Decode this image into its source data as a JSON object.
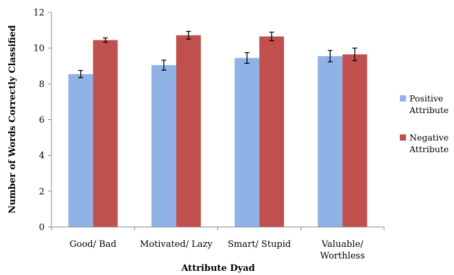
{
  "chart_data": {
    "type": "bar",
    "xlabel": "Attribute Dyad",
    "ylabel": "Number of Words Correctly Classified",
    "ylim": [
      0,
      12
    ],
    "yticks": [
      0,
      2,
      4,
      6,
      8,
      10,
      12
    ],
    "grid": false,
    "legend_position": "right",
    "error_bars": true,
    "categories": [
      [
        "Good/ Bad"
      ],
      [
        "Motivated/ Lazy"
      ],
      [
        "Smart/ Stupid"
      ],
      [
        "Valuable/",
        "Worthless"
      ]
    ],
    "series": [
      {
        "name": [
          "Positive",
          "Attribute"
        ],
        "color": "#8FB3E6",
        "values": [
          8.55,
          9.05,
          9.45,
          9.55
        ],
        "errors": [
          0.2,
          0.28,
          0.3,
          0.32
        ]
      },
      {
        "name": [
          "Negative",
          "Attribute"
        ],
        "color": "#C0504D",
        "values": [
          10.45,
          10.72,
          10.65,
          9.65
        ],
        "errors": [
          0.12,
          0.22,
          0.24,
          0.35
        ]
      }
    ]
  }
}
